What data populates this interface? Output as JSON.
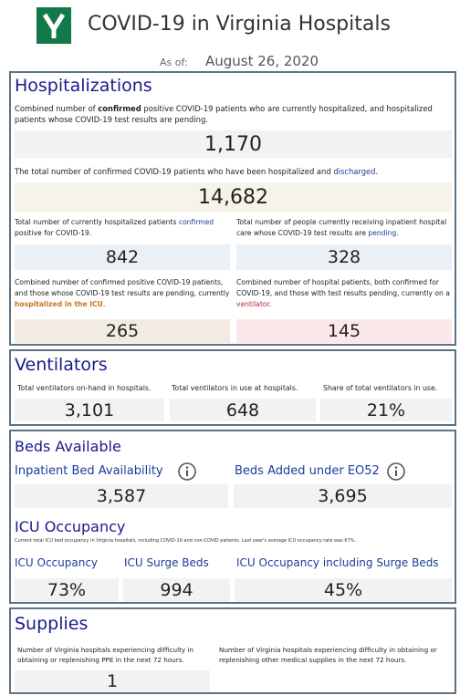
{
  "header": {
    "title": "COVID-19 in Virginia Hospitals",
    "as_of_label": "As of:",
    "as_of_date": "August 26, 2020"
  },
  "hospitalizations": {
    "title": "Hospitalizations",
    "current": {
      "description": [
        "Combined number of ",
        "confirmed",
        " positive COVID-19 patients who are currently hospitalized, and hospitalized patients whose COVID-19 test results are pending."
      ],
      "value": "1,170"
    },
    "total": {
      "description": [
        "The total number of confirmed COVID-19 patients who have been hospitalized and ",
        "discharged",
        "."
      ],
      "value": "14,682"
    },
    "confirmed": {
      "description": [
        "Total number of currently hospitalized patients ",
        "confirmed",
        " positive for COVID-19."
      ],
      "value": "842"
    },
    "pending": {
      "description": [
        "Total number of people currently receiving inpatient hospital care whose COVID-19 test results are ",
        "pending",
        "."
      ],
      "value": "328"
    },
    "icu": {
      "description": [
        "Combined number of confirmed positive COVID-19 patients, and those whose COVID-19 test results are pending, currently ",
        "hospitalized in the ICU",
        "."
      ],
      "value": "265"
    },
    "ventilator": {
      "description": [
        "Combined number of hospital patients, both confirmed for COVID-19, and those with test results pending, currently on a ",
        "ventilator",
        "."
      ],
      "value": "145"
    }
  },
  "ventilators": {
    "title": "Ventilators",
    "items": [
      {
        "label": "Total ventilators on-hand in hospitals.",
        "value": "3,101"
      },
      {
        "label": "Total ventilators in use at hospitals.",
        "value": "648"
      },
      {
        "label": "Share of total ventilators in use.",
        "value": "21%"
      }
    ]
  },
  "beds": {
    "title": "Beds Available",
    "items": [
      {
        "label": "Inpatient Bed Availability",
        "value": "3,587"
      },
      {
        "label": "Beds Added under EO52",
        "value": "3,695"
      }
    ],
    "icu_title": "ICU Occupancy",
    "icu_note": "Current total ICU bed occupancy in Virginia hospitals, including COVID-19 and non-COVID patients. Last year's average ICU occupancy rate was 67%.",
    "icu_items": [
      {
        "label": "ICU Occupancy",
        "value": "73%"
      },
      {
        "label": "ICU Surge Beds",
        "value": "994"
      },
      {
        "label": "ICU Occupancy including Surge Beds",
        "value": "45%"
      }
    ]
  },
  "supplies": {
    "title": "Supplies",
    "ppe": {
      "label": "Number of Virginia hospitals experiencing difficulty in obtaining or replenishing PPE in the next 72 hours.",
      "value": "1"
    },
    "other": {
      "label": "Number of Virginia hospitals experiencing difficulty in obtaining or replenishing other medical supplies in the next 72 hours."
    }
  }
}
